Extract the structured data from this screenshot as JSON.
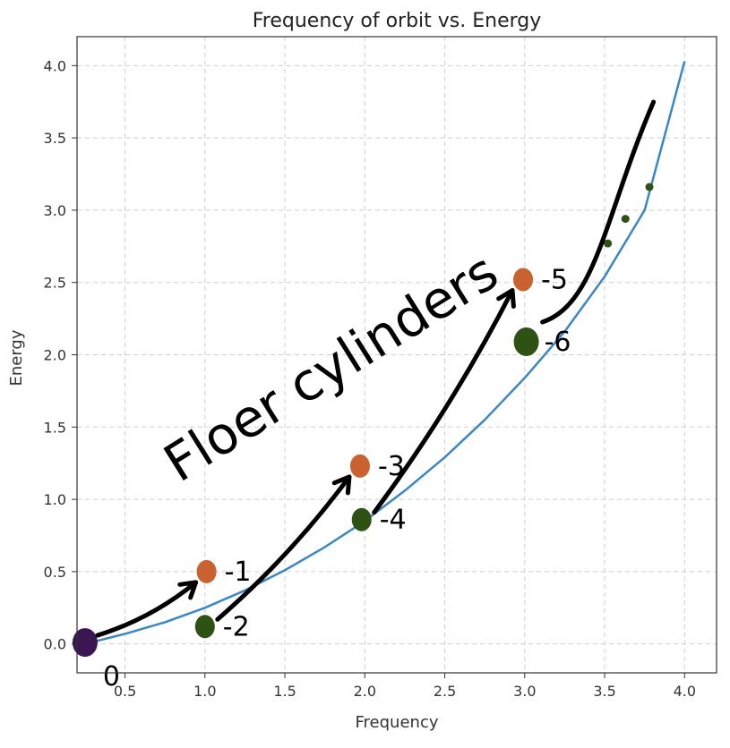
{
  "chart_data": {
    "type": "line",
    "title": "Frequency of orbit vs. Energy",
    "xlabel": "Frequency",
    "ylabel": "Energy",
    "xlim": [
      0.2,
      4.2
    ],
    "ylim": [
      -0.2,
      4.2
    ],
    "xticks": [
      "0.5",
      "1.0",
      "1.5",
      "2.0",
      "2.5",
      "3.0",
      "3.5",
      "4.0"
    ],
    "yticks": [
      "0.0",
      "0.5",
      "1.0",
      "1.5",
      "2.0",
      "2.5",
      "3.0",
      "3.5",
      "4.0"
    ],
    "grid": true,
    "series": [
      {
        "color": "#3b87c5",
        "x": [
          0.25,
          0.5,
          0.75,
          1.0,
          1.25,
          1.5,
          1.75,
          2.0,
          2.25,
          2.5,
          2.75,
          3.0,
          3.25,
          3.5,
          3.75,
          4.0
        ],
        "y": [
          0.0,
          0.07,
          0.15,
          0.25,
          0.37,
          0.51,
          0.67,
          0.85,
          1.06,
          1.29,
          1.55,
          1.84,
          2.16,
          2.54,
          3.0,
          4.03
        ]
      }
    ],
    "points": [
      {
        "x": 0.25,
        "y": 0.01,
        "label": "0",
        "color": "#3a1652"
      },
      {
        "x": 1.01,
        "y": 0.5,
        "label": "-1",
        "color": "#c9622f"
      },
      {
        "x": 1.0,
        "y": 0.12,
        "label": "-2",
        "color": "#2e5213"
      },
      {
        "x": 1.97,
        "y": 1.23,
        "label": "-3",
        "color": "#c9622f"
      },
      {
        "x": 1.98,
        "y": 0.86,
        "label": "-4",
        "color": "#2e5213"
      },
      {
        "x": 2.99,
        "y": 2.52,
        "label": "-5",
        "color": "#c9622f"
      },
      {
        "x": 3.01,
        "y": 2.09,
        "label": "-6",
        "color": "#2e5213"
      },
      {
        "x": 3.52,
        "y": 2.77,
        "color": "#2e5213"
      },
      {
        "x": 3.63,
        "y": 2.94,
        "color": "#2e5213"
      },
      {
        "x": 3.78,
        "y": 3.16,
        "color": "#2e5213"
      }
    ],
    "annotation": "Floer cylinders"
  }
}
